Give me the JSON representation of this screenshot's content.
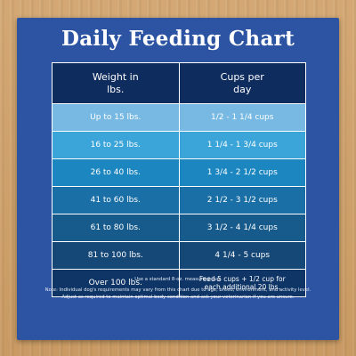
{
  "title": "Daily Feeding Chart",
  "table": {
    "headers": [
      "Weight in\nlbs.",
      "Cups per\nday"
    ],
    "rows": [
      {
        "weight": "Up to 15 lbs.",
        "cups": "1/2 - 1 1/4 cups",
        "color": "#77b9e2"
      },
      {
        "weight": "16 to 25 lbs.",
        "cups": "1 1/4 - 1 3/4 cups",
        "color": "#3ba5d9"
      },
      {
        "weight": "26 to 40 lbs.",
        "cups": "1 3/4 - 2 1/2 cups",
        "color": "#1b86c0"
      },
      {
        "weight": "41 to 60 lbs.",
        "cups": "2 1/2 - 3 1/2 cups",
        "color": "#1a6fa6"
      },
      {
        "weight": "61 to 80 lbs.",
        "cups": "3 1/2 - 4 1/4 cups",
        "color": "#175b8c"
      },
      {
        "weight": "81 to 100 lbs.",
        "cups": "4 1/4 - 5 cups",
        "color": "#154876"
      },
      {
        "weight": "Over 100 lbs.",
        "cups": "Feed 5 cups + 1/2 cup for\neach additional 20 lbs.",
        "color": "#0e3566"
      }
    ]
  },
  "footnotes": [
    "Use a standard 8-oz. measuring cup.",
    "Note: Individual dog's requirements may vary from this chart due to age, breed, environment, and activity level.",
    "Adjust as required to maintain optimal body condition and ask your veterinarian if you are unsure."
  ]
}
